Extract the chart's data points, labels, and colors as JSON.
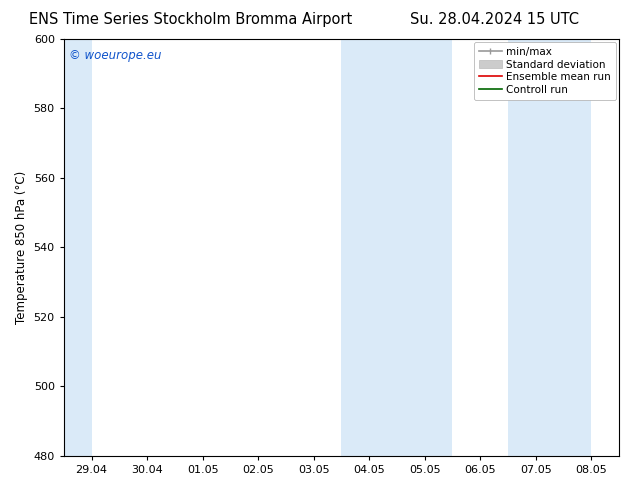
{
  "title_left": "ENS Time Series Stockholm Bromma Airport",
  "title_right": "Su. 28.04.2024 15 UTC",
  "ylabel": "Temperature 850 hPa (°C)",
  "watermark": "© woeurope.eu",
  "watermark_color": "#1155cc",
  "ylim": [
    480,
    600
  ],
  "yticks": [
    480,
    500,
    520,
    540,
    560,
    580,
    600
  ],
  "xtick_labels": [
    "29.04",
    "30.04",
    "01.05",
    "02.05",
    "03.05",
    "04.05",
    "05.05",
    "06.05",
    "07.05",
    "08.05"
  ],
  "shade_bands": [
    {
      "xstart": -0.5,
      "xend": 0.0
    },
    {
      "xstart": 4.5,
      "xend": 6.5
    },
    {
      "xstart": 7.5,
      "xend": 9.0
    }
  ],
  "shade_color": "#daeaf8",
  "bg_color": "#ffffff",
  "legend_items": [
    {
      "label": "min/max",
      "color": "#999999",
      "lw": 1.2,
      "style": "minmax"
    },
    {
      "label": "Standard deviation",
      "color": "#cccccc",
      "lw": 5,
      "style": "fill"
    },
    {
      "label": "Ensemble mean run",
      "color": "#dd0000",
      "lw": 1.2,
      "style": "line"
    },
    {
      "label": "Controll run",
      "color": "#006600",
      "lw": 1.2,
      "style": "line"
    }
  ],
  "title_fontsize": 10.5,
  "ylabel_fontsize": 8.5,
  "tick_fontsize": 8,
  "legend_fontsize": 7.5,
  "watermark_fontsize": 8.5
}
